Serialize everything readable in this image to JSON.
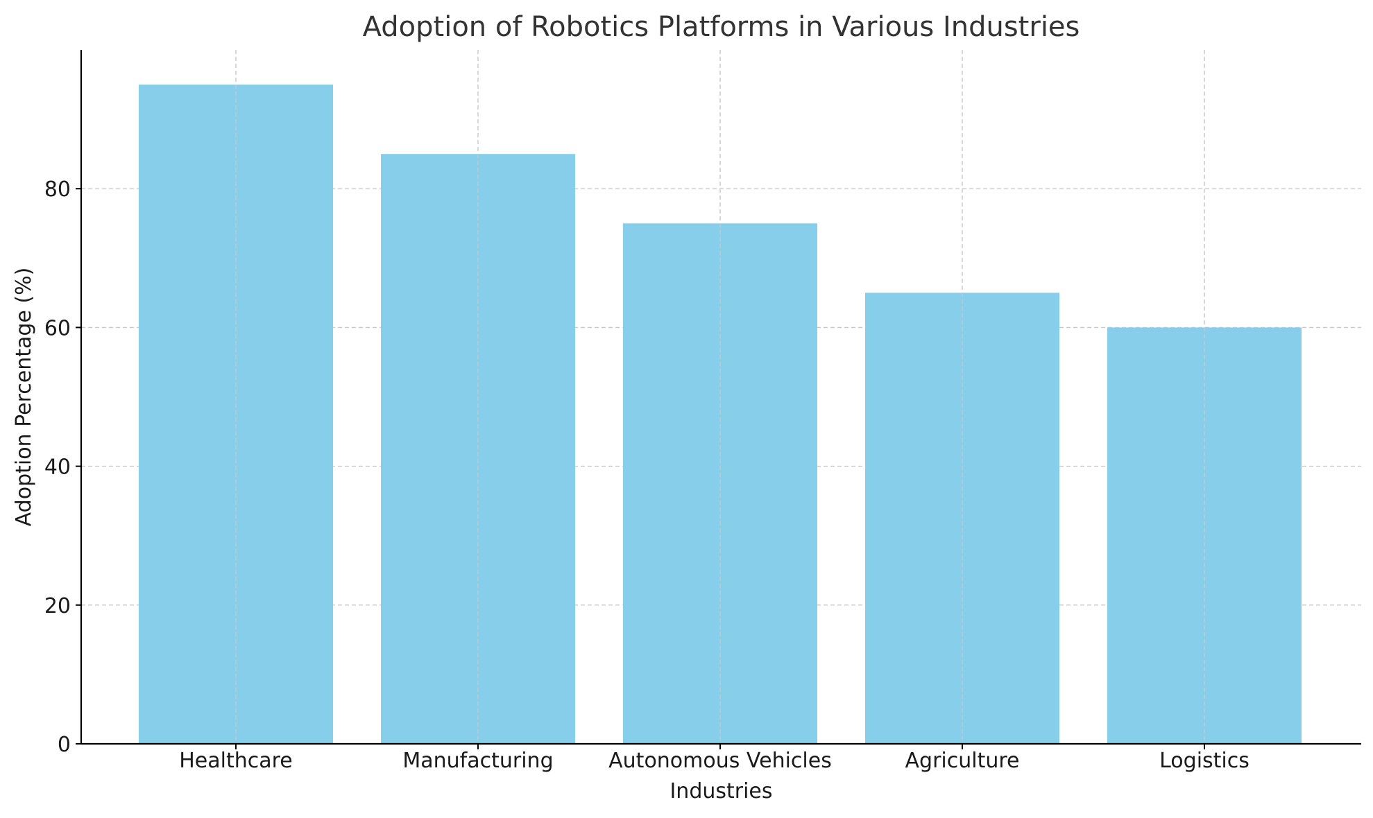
{
  "chart_data": {
    "type": "bar",
    "title": "Adoption of Robotics Platforms in Various Industries",
    "xlabel": "Industries",
    "ylabel": "Adoption Percentage (%)",
    "categories": [
      "Healthcare",
      "Manufacturing",
      "Autonomous Vehicles",
      "Agriculture",
      "Logistics"
    ],
    "values": [
      95,
      85,
      75,
      65,
      60
    ],
    "ylim": [
      0,
      100
    ],
    "yticks": [
      0,
      20,
      40,
      60,
      80
    ],
    "grid": true,
    "grid_style": "dashed",
    "bar_color": "#87CEEB",
    "legend": false
  }
}
